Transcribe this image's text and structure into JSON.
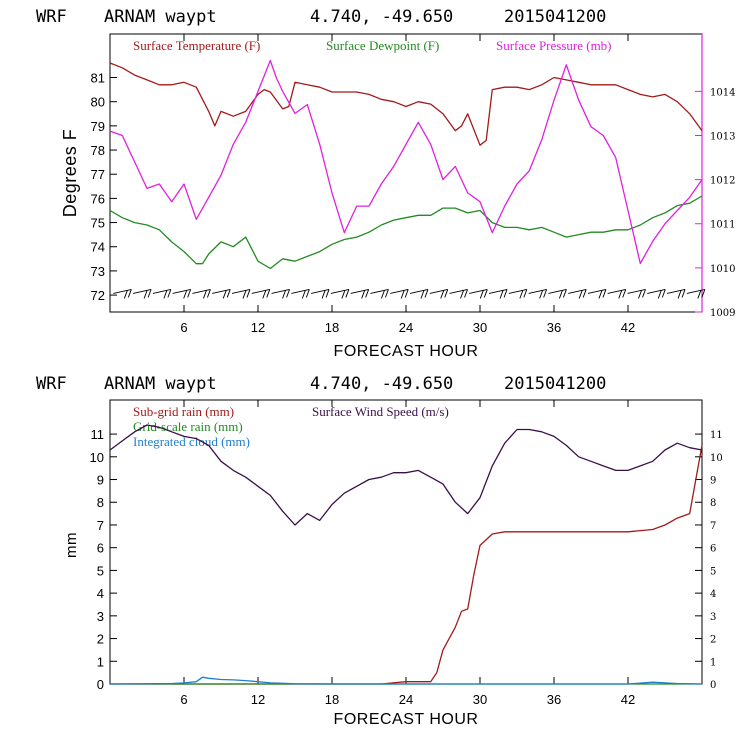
{
  "chart_data": [
    {
      "type": "line",
      "header": {
        "model": "WRF",
        "station": "ARNAM waypt",
        "coords": "4.740, -49.650",
        "init": "2015041200"
      },
      "xlabel": "FORECAST HOUR",
      "ylabel": "Degrees F",
      "xlim": [
        0,
        48
      ],
      "ylim": [
        71.3,
        82.8
      ],
      "xticks": [
        6,
        12,
        18,
        24,
        30,
        36,
        42
      ],
      "yticks": [
        72,
        73,
        74,
        75,
        76,
        77,
        78,
        79,
        80,
        81
      ],
      "y2lim": [
        1009,
        1015.3
      ],
      "y2ticks": [
        1009,
        1010,
        1011,
        1012,
        1013,
        1014
      ],
      "grid": false,
      "legend_position": "top-left",
      "colors": {
        "temperature": "#a31a1a",
        "dewpoint": "#228b22",
        "pressure": "#e020e0"
      },
      "series": [
        {
          "key": "temperature",
          "name": "Surface Temperature (F)",
          "axis": "left",
          "x": [
            0,
            1,
            2,
            3,
            4,
            5,
            6,
            7,
            8,
            8.5,
            9,
            10,
            11,
            12,
            12.5,
            13,
            14,
            14.5,
            15,
            16,
            17,
            18,
            19,
            20,
            21,
            22,
            23,
            24,
            25,
            26,
            27,
            28,
            28.5,
            29,
            30,
            30.5,
            31,
            32,
            33,
            34,
            35,
            36,
            37,
            38,
            39,
            40,
            41,
            42,
            43,
            44,
            45,
            46,
            47,
            48
          ],
          "y": [
            81.6,
            81.4,
            81.1,
            80.9,
            80.7,
            80.7,
            80.8,
            80.6,
            79.6,
            79.0,
            79.6,
            79.4,
            79.6,
            80.3,
            80.5,
            80.4,
            79.7,
            79.8,
            80.8,
            80.7,
            80.6,
            80.4,
            80.4,
            80.4,
            80.3,
            80.1,
            80.0,
            79.8,
            80.0,
            79.9,
            79.5,
            78.8,
            79.0,
            79.5,
            78.2,
            78.4,
            80.5,
            80.6,
            80.6,
            80.5,
            80.7,
            81.0,
            80.9,
            80.8,
            80.7,
            80.7,
            80.7,
            80.5,
            80.3,
            80.2,
            80.3,
            80.0,
            79.5,
            78.8
          ]
        },
        {
          "key": "dewpoint",
          "name": "Surface Dewpoint (F)",
          "axis": "left",
          "x": [
            0,
            1,
            2,
            3,
            4,
            5,
            6,
            7,
            7.5,
            8,
            9,
            10,
            11,
            12,
            13,
            14,
            15,
            16,
            17,
            18,
            19,
            20,
            21,
            22,
            23,
            24,
            25,
            26,
            27,
            28,
            29,
            30,
            31,
            32,
            33,
            34,
            35,
            36,
            37,
            38,
            39,
            40,
            41,
            42,
            43,
            44,
            45,
            46,
            47,
            48
          ],
          "y": [
            75.5,
            75.2,
            75.0,
            74.9,
            74.7,
            74.2,
            73.8,
            73.3,
            73.3,
            73.7,
            74.2,
            74.0,
            74.4,
            73.4,
            73.1,
            73.5,
            73.4,
            73.6,
            73.8,
            74.1,
            74.3,
            74.4,
            74.6,
            74.9,
            75.1,
            75.2,
            75.3,
            75.3,
            75.6,
            75.6,
            75.4,
            75.5,
            75.0,
            74.8,
            74.8,
            74.7,
            74.8,
            74.6,
            74.4,
            74.5,
            74.6,
            74.6,
            74.7,
            74.7,
            74.9,
            75.2,
            75.4,
            75.7,
            75.8,
            76.1
          ]
        },
        {
          "key": "pressure",
          "name": "Surface Pressure (mb)",
          "axis": "right",
          "x": [
            0,
            1,
            2,
            3,
            4,
            5,
            6,
            7,
            8,
            9,
            10,
            11,
            12,
            13,
            13.5,
            14,
            15,
            16,
            17,
            18,
            19,
            20,
            21,
            22,
            23,
            24,
            25,
            26,
            27,
            28,
            29,
            30,
            31,
            32,
            33,
            34,
            35,
            36,
            37,
            38,
            39,
            40,
            41,
            42,
            43,
            44,
            45,
            46,
            47,
            48
          ],
          "y": [
            1013.1,
            1013.0,
            1012.4,
            1011.8,
            1011.9,
            1011.5,
            1011.9,
            1011.1,
            1011.6,
            1012.1,
            1012.8,
            1013.3,
            1014.0,
            1014.7,
            1014.3,
            1014.0,
            1013.5,
            1013.7,
            1012.8,
            1011.7,
            1010.8,
            1011.4,
            1011.4,
            1011.9,
            1012.3,
            1012.8,
            1013.3,
            1012.8,
            1012.0,
            1012.3,
            1011.7,
            1011.5,
            1010.8,
            1011.4,
            1011.9,
            1012.2,
            1012.9,
            1013.8,
            1014.6,
            1013.8,
            1013.2,
            1013.0,
            1012.5,
            1011.3,
            1010.1,
            1010.6,
            1011.0,
            1011.3,
            1011.6,
            1012.0
          ]
        }
      ],
      "wind_barbs": {
        "description": "row of wind barbs near 72 F",
        "count": 30
      }
    },
    {
      "type": "line",
      "header": {
        "model": "WRF",
        "station": "ARNAM waypt",
        "coords": "4.740, -49.650",
        "init": "2015041200"
      },
      "xlabel": "FORECAST HOUR",
      "ylabel": "mm",
      "xlim": [
        0,
        48
      ],
      "ylim": [
        0,
        12.5
      ],
      "xticks": [
        6,
        12,
        18,
        24,
        30,
        36,
        42
      ],
      "yticks": [
        0,
        1,
        2,
        3,
        4,
        5,
        6,
        7,
        8,
        9,
        10,
        11
      ],
      "y2ticks": [
        0,
        1,
        2,
        3,
        4,
        5,
        6,
        7,
        8,
        9,
        10,
        11
      ],
      "grid": false,
      "legend_position": "top-left",
      "colors": {
        "subgrid": "#a31a1a",
        "gridscale": "#228b22",
        "cloud": "#1e7fd0",
        "wind": "#3a0f4a"
      },
      "series": [
        {
          "key": "subgrid",
          "name": "Sub-grid rain (mm)",
          "x": [
            0,
            22,
            24,
            25,
            26,
            26.5,
            27,
            28,
            28.5,
            29,
            29.5,
            30,
            31,
            32,
            36,
            40,
            42,
            44,
            45,
            46,
            47,
            47.5,
            48
          ],
          "y": [
            0,
            0,
            0.1,
            0.1,
            0.1,
            0.5,
            1.5,
            2.5,
            3.2,
            3.3,
            4.8,
            6.1,
            6.6,
            6.7,
            6.7,
            6.7,
            6.7,
            6.8,
            7.0,
            7.3,
            7.5,
            9.0,
            10.5
          ]
        },
        {
          "key": "gridscale",
          "name": "Grid-scale rain (mm)",
          "x": [
            0,
            48
          ],
          "y": [
            0,
            0
          ]
        },
        {
          "key": "cloud",
          "name": "Integrated cloud (mm)",
          "x": [
            0,
            5,
            6,
            7,
            7.5,
            8,
            9,
            10,
            11,
            12,
            13,
            14,
            15,
            18,
            24,
            30,
            36,
            42,
            44,
            45,
            46,
            48
          ],
          "y": [
            0,
            0.02,
            0.05,
            0.1,
            0.3,
            0.25,
            0.2,
            0.18,
            0.15,
            0.1,
            0.05,
            0.03,
            0.01,
            0,
            0,
            0,
            0,
            0,
            0.08,
            0.05,
            0.02,
            0
          ]
        },
        {
          "key": "wind",
          "name": "Surface Wind Speed (m/s)",
          "x": [
            0,
            1,
            2,
            3,
            4,
            5,
            6,
            7,
            8,
            9,
            10,
            11,
            12,
            13,
            14,
            15,
            16,
            17,
            18,
            19,
            20,
            21,
            22,
            23,
            24,
            25,
            26,
            27,
            28,
            29,
            30,
            31,
            32,
            33,
            34,
            35,
            36,
            37,
            38,
            39,
            40,
            41,
            42,
            43,
            44,
            45,
            46,
            47,
            48
          ],
          "y": [
            10.3,
            10.7,
            11.1,
            11.4,
            11.3,
            11.1,
            10.9,
            10.8,
            10.5,
            9.8,
            9.4,
            9.1,
            8.7,
            8.3,
            7.6,
            7.0,
            7.5,
            7.2,
            7.9,
            8.4,
            8.7,
            9.0,
            9.1,
            9.3,
            9.3,
            9.4,
            9.1,
            8.8,
            8.0,
            7.5,
            8.2,
            9.6,
            10.6,
            11.2,
            11.2,
            11.1,
            10.9,
            10.5,
            10.0,
            9.8,
            9.6,
            9.4,
            9.4,
            9.6,
            9.8,
            10.3,
            10.6,
            10.4,
            10.3
          ]
        }
      ]
    }
  ]
}
